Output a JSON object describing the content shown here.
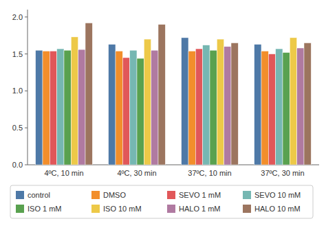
{
  "chart_data": {
    "type": "bar",
    "categories": [
      "4ºC, 10 min",
      "4ºC, 30 min",
      "37ºC, 10 min",
      "37ºC, 30 min"
    ],
    "series": [
      {
        "name": "control",
        "values": [
          1.55,
          1.63,
          1.72,
          1.63
        ]
      },
      {
        "name": "DMSO",
        "values": [
          1.54,
          1.54,
          1.54,
          1.54
        ]
      },
      {
        "name": "SEVO 1 mM",
        "values": [
          1.54,
          1.45,
          1.57,
          1.5
        ]
      },
      {
        "name": "SEVO 10 mM",
        "values": [
          1.57,
          1.55,
          1.62,
          1.57
        ]
      },
      {
        "name": "ISO 1 mM",
        "values": [
          1.55,
          1.44,
          1.55,
          1.52
        ]
      },
      {
        "name": "ISO 10 mM",
        "values": [
          1.73,
          1.7,
          1.7,
          1.72
        ]
      },
      {
        "name": "HALO 1 mM",
        "values": [
          1.56,
          1.55,
          1.6,
          1.58
        ]
      },
      {
        "name": "HALO 10 mM",
        "values": [
          1.92,
          1.9,
          1.65,
          1.65
        ]
      }
    ],
    "ylim": [
      0,
      2.1
    ],
    "yticks": [
      {
        "value": 0,
        "label": "0.0"
      },
      0.5,
      {
        "value": 1,
        "label": "1.0"
      },
      1.5,
      {
        "value": 2,
        "label": "2.0"
      }
    ],
    "grid": false,
    "legend": "bottom"
  }
}
